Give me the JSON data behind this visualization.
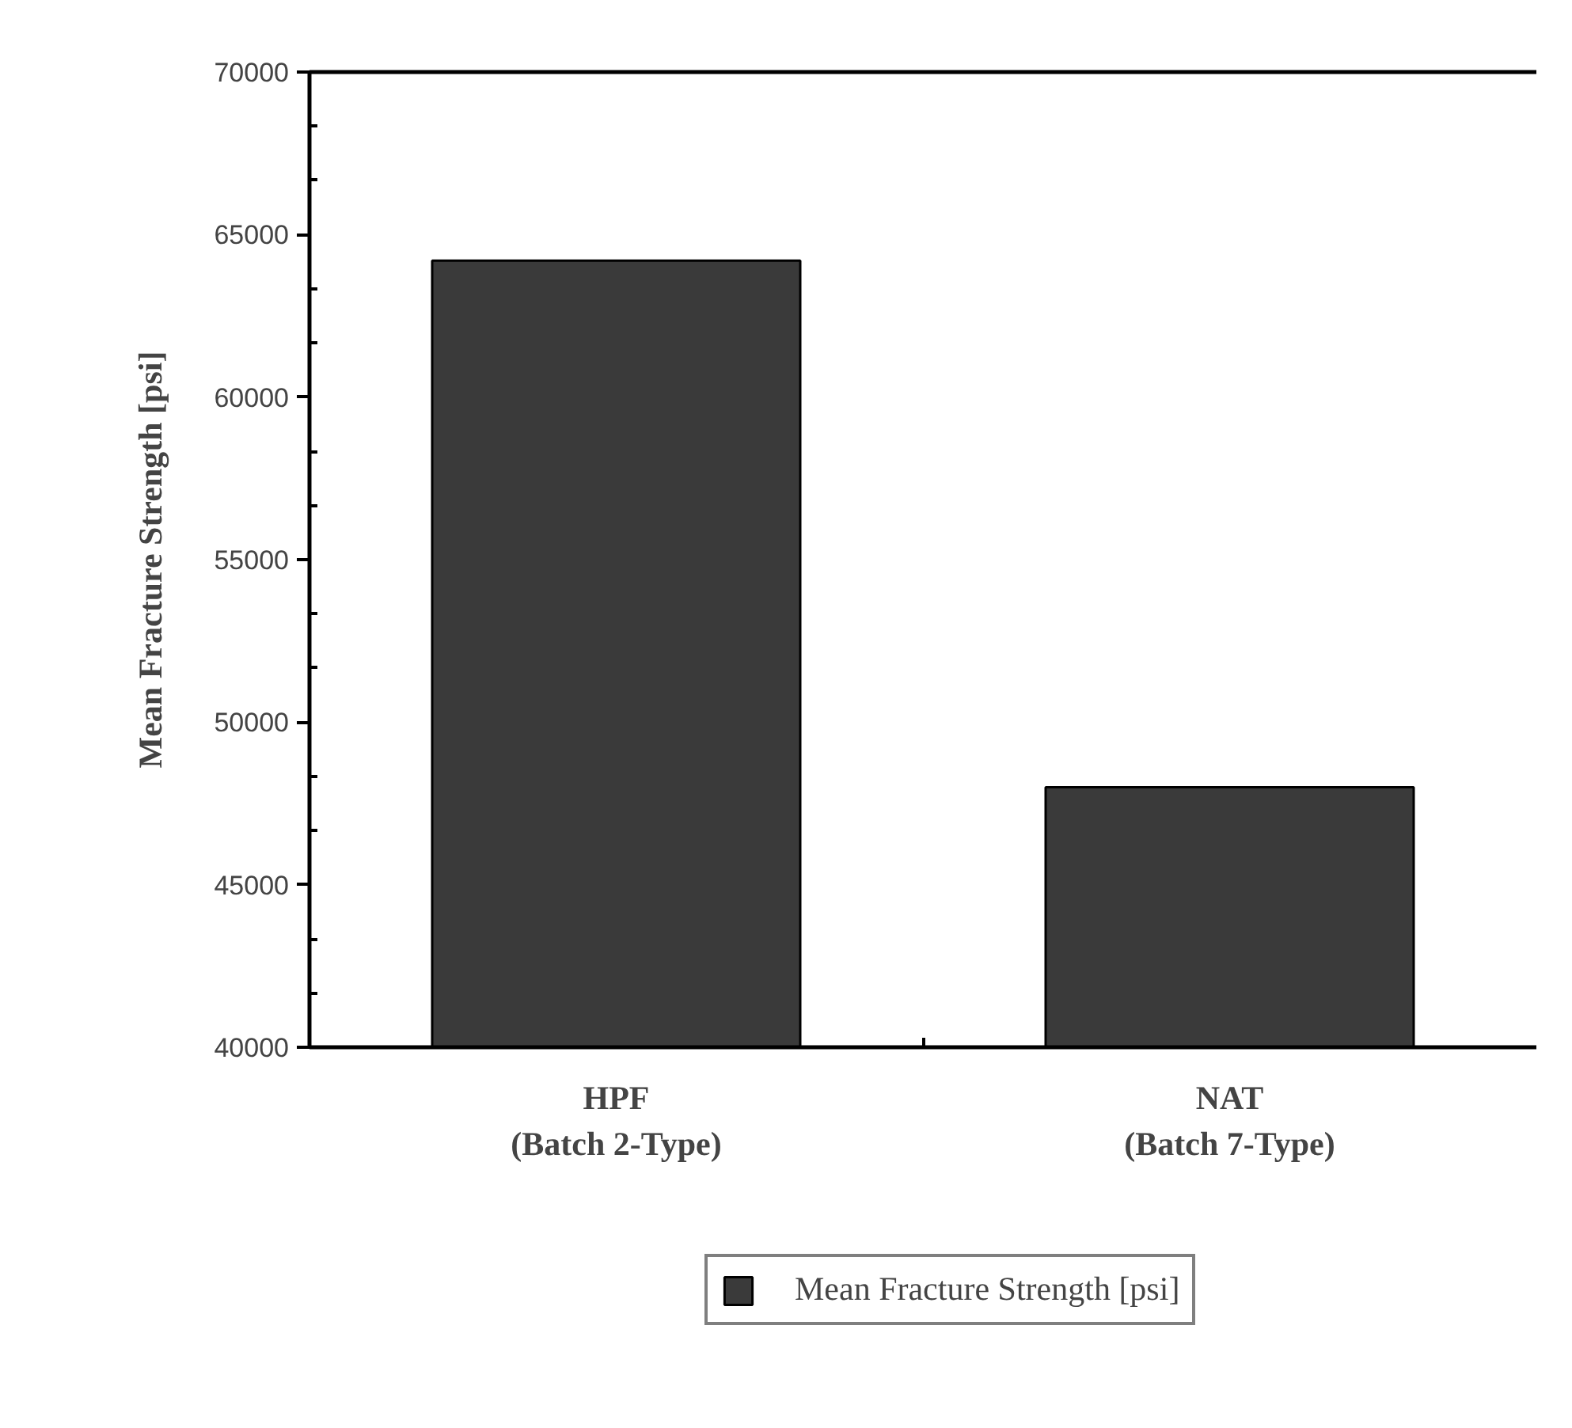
{
  "chart_data": {
    "type": "bar",
    "ylabel": "Mean Fracture Strength [psi]",
    "categories": [
      "HPF\n(Batch 2-Type)",
      "NAT\n(Batch 7-Type)"
    ],
    "series": [
      {
        "name": "Mean Fracture Strength [psi]",
        "color": "#3a3a3a",
        "values": [
          64200,
          48000
        ]
      }
    ],
    "ylim": [
      40000,
      70000
    ],
    "yticks": [
      40000,
      45000,
      50000,
      55000,
      60000,
      65000,
      70000
    ],
    "legend": "bottom",
    "grid": false
  }
}
